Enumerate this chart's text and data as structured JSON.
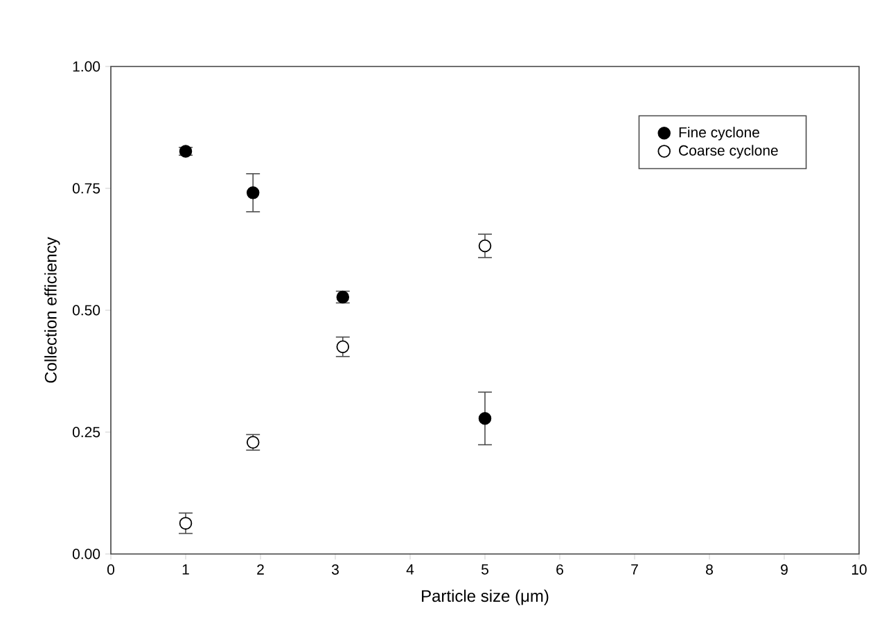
{
  "chart_data": {
    "type": "scatter",
    "xlabel": "Particle size (μm)",
    "ylabel": "Collection efficiency",
    "xlim": [
      0,
      10
    ],
    "xticks": [
      0,
      1,
      2,
      3,
      4,
      5,
      6,
      7,
      8,
      9,
      10
    ],
    "ylim": [
      0,
      1
    ],
    "yticks": [
      {
        "value": 0,
        "label": "0.00"
      },
      {
        "value": 0.25,
        "label": "0.25"
      },
      {
        "value": 0.5,
        "label": "0.50"
      },
      {
        "value": 0.75,
        "label": "0.75"
      },
      {
        "value": 1,
        "label": "1.00"
      }
    ],
    "grid": false,
    "legend": "top right",
    "marker": "circle",
    "series": [
      {
        "name": "Fine cyclone",
        "color": "#000000",
        "x": [
          1,
          1.9,
          3.1,
          5
        ],
        "values": [
          0.826,
          0.741,
          0.527,
          0.278
        ],
        "errors": [
          0.008,
          0.039,
          0.012,
          0.054
        ]
      },
      {
        "name": "Coarse cyclone",
        "color": "#ffffff",
        "x": [
          1,
          1.9,
          3.1,
          5
        ],
        "values": [
          0.063,
          0.229,
          0.425,
          0.632
        ],
        "errors": [
          0.021,
          0.016,
          0.02,
          0.024
        ]
      }
    ]
  }
}
